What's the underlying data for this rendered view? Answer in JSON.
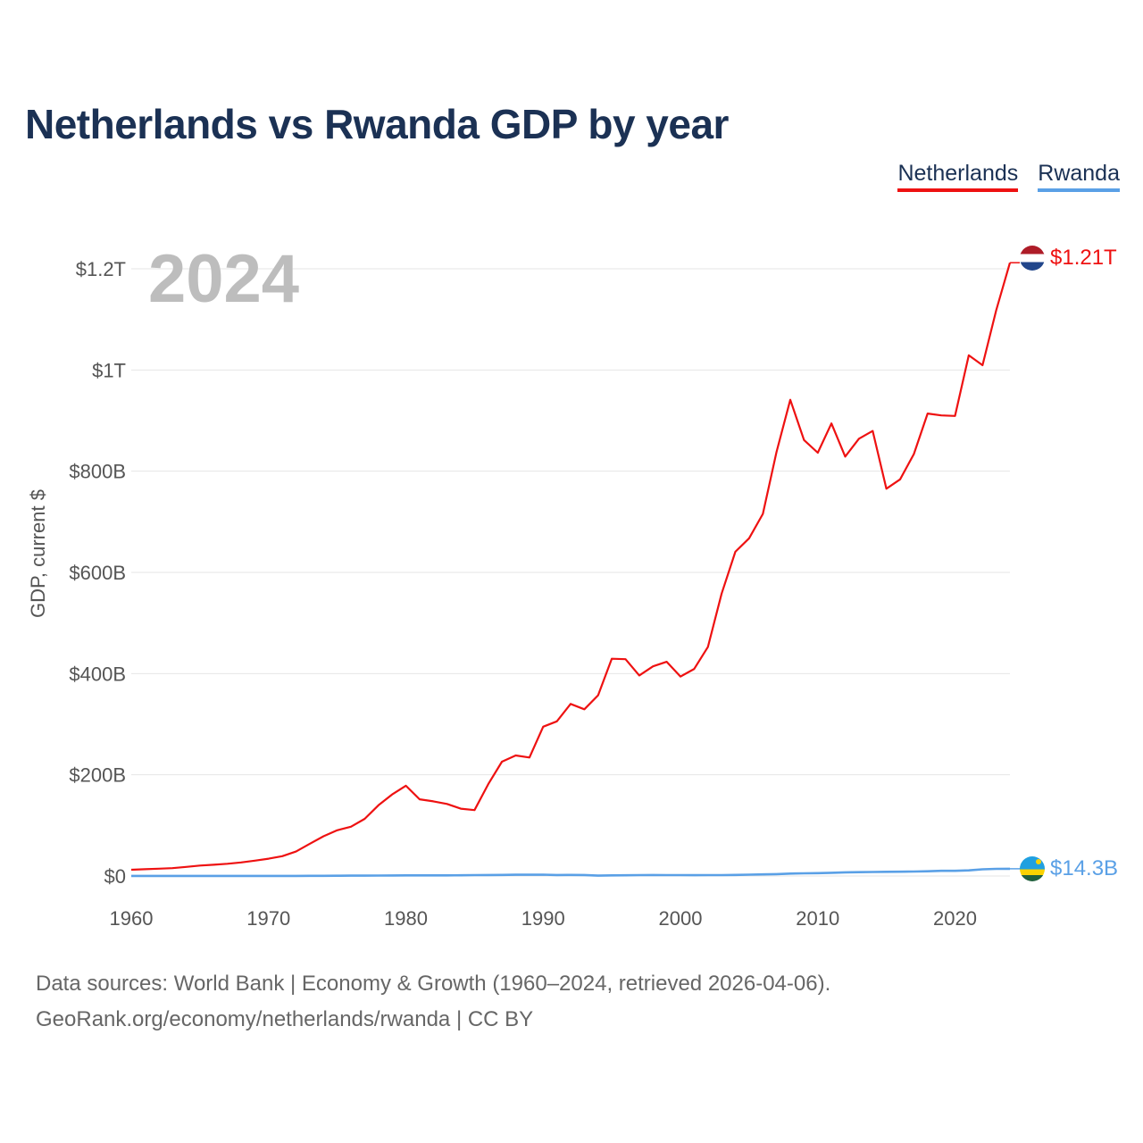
{
  "title": "Netherlands vs Rwanda GDP by year",
  "legend": [
    "Netherlands",
    "Rwanda"
  ],
  "colors": {
    "netherlands": "#ee1111",
    "rwanda": "#5aa0e6",
    "title": "#1b3154"
  },
  "source": {
    "line1": "Data sources: World Bank | Economy & Growth (1960–2024, retrieved 2026-04-06).",
    "line2": "GeoRank.org/economy/netherlands/rwanda | CC BY"
  },
  "chart_data": {
    "type": "line",
    "title": "Netherlands vs Rwanda GDP by year",
    "ylabel": "GDP, current $",
    "xlabel": "",
    "year_label": "2024",
    "xlim": [
      1960,
      2024
    ],
    "ylim": [
      0,
      1250
    ],
    "y_unit": "billion USD",
    "y_ticks": [
      0,
      200,
      400,
      600,
      800,
      1000,
      1200
    ],
    "y_tick_labels": [
      "$0",
      "$200B",
      "$400B",
      "$600B",
      "$800B",
      "$1T",
      "$1.2T"
    ],
    "x_ticks": [
      1960,
      1970,
      1980,
      1990,
      2000,
      2010,
      2020
    ],
    "x_tick_labels": [
      "1960",
      "1970",
      "1980",
      "1990",
      "2000",
      "2010",
      "2020"
    ],
    "grid": true,
    "legend_position": "top-right",
    "x": [
      1960,
      1961,
      1962,
      1963,
      1964,
      1965,
      1966,
      1967,
      1968,
      1969,
      1970,
      1971,
      1972,
      1973,
      1974,
      1975,
      1976,
      1977,
      1978,
      1979,
      1980,
      1981,
      1982,
      1983,
      1984,
      1985,
      1986,
      1987,
      1988,
      1989,
      1990,
      1991,
      1992,
      1993,
      1994,
      1995,
      1996,
      1997,
      1998,
      1999,
      2000,
      2001,
      2002,
      2003,
      2004,
      2005,
      2006,
      2007,
      2008,
      2009,
      2010,
      2011,
      2012,
      2013,
      2014,
      2015,
      2016,
      2017,
      2018,
      2019,
      2020,
      2021,
      2022,
      2023,
      2024
    ],
    "series": [
      {
        "name": "Netherlands",
        "end_label": "$1.21T",
        "values": [
          12.3,
          13.5,
          14.5,
          15.5,
          18.0,
          20.6,
          22.3,
          24.2,
          26.9,
          30.4,
          34.2,
          39.1,
          48.4,
          63.7,
          78.6,
          90.3,
          97.5,
          113.0,
          139.8,
          161.2,
          178.4,
          151.5,
          147.6,
          142.4,
          133.0,
          130.2,
          181.6,
          225.9,
          238.2,
          234.2,
          295.0,
          305.6,
          340.0,
          329.4,
          357.2,
          429.3,
          428.4,
          396.4,
          414.3,
          423.3,
          394.2,
          409.3,
          452.8,
          558.0,
          640.7,
          667.4,
          715.5,
          838.1,
          941.2,
          861.6,
          836.4,
          894.4,
          828.9,
          864.2,
          879.6,
          765.3,
          783.8,
          833.9,
          914.0,
          910.2,
          909.1,
          1029.0,
          1009.4,
          1118.0,
          1212.0
        ]
      },
      {
        "name": "Rwanda",
        "end_label": "$14.3B",
        "values": [
          0.12,
          0.12,
          0.13,
          0.13,
          0.13,
          0.15,
          0.13,
          0.16,
          0.17,
          0.19,
          0.22,
          0.23,
          0.25,
          0.29,
          0.31,
          0.56,
          0.64,
          0.75,
          0.87,
          1.08,
          1.16,
          1.26,
          1.26,
          1.32,
          1.38,
          1.73,
          1.94,
          2.16,
          2.39,
          2.41,
          2.58,
          1.91,
          2.06,
          1.97,
          0.75,
          1.3,
          1.38,
          1.85,
          1.99,
          1.81,
          1.73,
          1.67,
          1.68,
          1.85,
          2.09,
          2.58,
          3.11,
          3.76,
          4.71,
          5.21,
          5.67,
          6.41,
          7.22,
          7.52,
          7.95,
          8.26,
          8.39,
          8.9,
          9.38,
          10.19,
          10.18,
          11.07,
          13.31,
          14.1,
          14.3
        ]
      }
    ]
  }
}
